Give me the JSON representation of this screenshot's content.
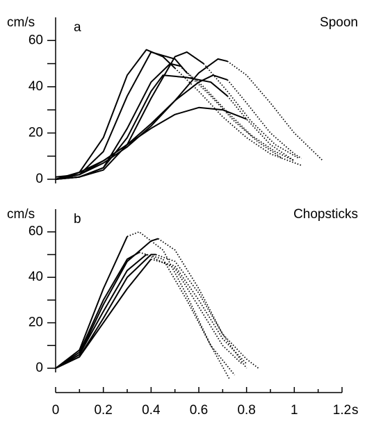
{
  "chart_data": [
    {
      "type": "line",
      "panel_label": "a",
      "title": "Spoon",
      "y_label": "cm/s",
      "xlim": [
        0,
        1.2
      ],
      "ylim": [
        0,
        70
      ],
      "yticks": [
        0,
        20,
        40,
        60
      ],
      "yminor": [
        10,
        30,
        50
      ],
      "series": [
        {
          "style": "solid",
          "x": [
            0,
            0.1,
            0.2,
            0.3,
            0.38,
            0.45,
            0.5
          ],
          "values": [
            0,
            3,
            18,
            45,
            56,
            53,
            48
          ]
        },
        {
          "style": "dotted",
          "x": [
            0.5,
            0.6,
            0.7,
            0.8,
            0.9,
            0.95
          ],
          "values": [
            48,
            38,
            27,
            18,
            11,
            9
          ]
        },
        {
          "style": "solid",
          "x": [
            0,
            0.1,
            0.2,
            0.3,
            0.4,
            0.5,
            0.55
          ],
          "values": [
            1,
            2,
            12,
            36,
            55,
            52,
            46
          ]
        },
        {
          "style": "dotted",
          "x": [
            0.55,
            0.65,
            0.75,
            0.85,
            0.95,
            1.03
          ],
          "values": [
            46,
            36,
            25,
            16,
            9,
            6
          ]
        },
        {
          "style": "solid",
          "x": [
            0,
            0.1,
            0.2,
            0.3,
            0.4,
            0.48,
            0.52
          ],
          "values": [
            0,
            1,
            5,
            22,
            42,
            50,
            49
          ]
        },
        {
          "style": "dotted",
          "x": [
            0.52,
            0.62,
            0.72,
            0.82,
            0.92,
            1.0
          ],
          "values": [
            49,
            40,
            29,
            19,
            12,
            8
          ]
        },
        {
          "style": "solid",
          "x": [
            0,
            0.1,
            0.2,
            0.3,
            0.4,
            0.5,
            0.55,
            0.62
          ],
          "values": [
            0,
            1,
            4,
            15,
            35,
            53,
            55,
            50
          ]
        },
        {
          "style": "dotted",
          "x": [
            0.62,
            0.72,
            0.82,
            0.92,
            1.02
          ],
          "values": [
            50,
            38,
            25,
            15,
            9
          ]
        },
        {
          "style": "solid",
          "x": [
            0,
            0.1,
            0.2,
            0.3,
            0.4,
            0.5,
            0.6,
            0.68,
            0.72
          ],
          "values": [
            0,
            2,
            8,
            15,
            24,
            34,
            46,
            52,
            51
          ]
        },
        {
          "style": "dotted",
          "x": [
            0.72,
            0.8,
            0.9,
            1.0,
            1.1,
            1.12
          ],
          "values": [
            51,
            45,
            33,
            20,
            10,
            8
          ]
        },
        {
          "style": "solid",
          "x": [
            0,
            0.1,
            0.2,
            0.3,
            0.4,
            0.5,
            0.6,
            0.66,
            0.72
          ],
          "values": [
            0,
            2,
            7,
            14,
            23,
            34,
            42,
            45,
            43
          ]
        },
        {
          "style": "dotted",
          "x": [
            0.72,
            0.8,
            0.9,
            1.0,
            1.03
          ],
          "values": [
            43,
            33,
            20,
            11,
            9
          ]
        },
        {
          "style": "solid",
          "x": [
            0,
            0.1,
            0.2,
            0.3,
            0.4,
            0.45,
            0.55,
            0.65,
            0.72
          ],
          "values": [
            0,
            1,
            5,
            18,
            38,
            45,
            44,
            42,
            36
          ]
        },
        {
          "style": "dotted",
          "x": [
            0.72,
            0.8,
            0.9,
            1.0
          ],
          "values": [
            36,
            26,
            15,
            8
          ]
        },
        {
          "style": "solid",
          "x": [
            0,
            0.1,
            0.2,
            0.3,
            0.4,
            0.5,
            0.6,
            0.7,
            0.8
          ],
          "values": [
            0,
            3,
            8,
            15,
            22,
            28,
            31,
            30,
            26
          ]
        }
      ]
    },
    {
      "type": "line",
      "panel_label": "b",
      "title": "Chopsticks",
      "y_label": "cm/s",
      "xlim": [
        0,
        1.2
      ],
      "ylim": [
        0,
        70
      ],
      "yticks": [
        0,
        20,
        40,
        60
      ],
      "yminor": [
        10,
        30,
        50
      ],
      "xticks": [
        0,
        0.2,
        0.4,
        0.6,
        0.8,
        1.0,
        1.2
      ],
      "xminor": [
        0.1,
        0.3,
        0.5,
        0.7,
        0.9,
        1.1
      ],
      "x_label": "s",
      "series": [
        {
          "style": "solid",
          "x": [
            0,
            0.1,
            0.2,
            0.3
          ],
          "values": [
            0,
            8,
            35,
            58
          ]
        },
        {
          "style": "dotted",
          "x": [
            0.3,
            0.35,
            0.45,
            0.55,
            0.65,
            0.73
          ],
          "values": [
            58,
            60,
            52,
            32,
            10,
            -5
          ]
        },
        {
          "style": "solid",
          "x": [
            0,
            0.1,
            0.2,
            0.3,
            0.4,
            0.43
          ],
          "values": [
            0,
            6,
            28,
            47,
            56,
            57
          ]
        },
        {
          "style": "dotted",
          "x": [
            0.43,
            0.5,
            0.6,
            0.7,
            0.8
          ],
          "values": [
            57,
            52,
            35,
            15,
            0
          ]
        },
        {
          "style": "solid",
          "x": [
            0,
            0.1,
            0.2,
            0.3,
            0.35
          ],
          "values": [
            0,
            7,
            30,
            48,
            51
          ]
        },
        {
          "style": "dotted",
          "x": [
            0.35,
            0.45,
            0.55,
            0.65,
            0.75
          ],
          "values": [
            51,
            48,
            30,
            10,
            -3
          ]
        },
        {
          "style": "solid",
          "x": [
            0,
            0.1,
            0.2,
            0.3,
            0.4,
            0.42
          ],
          "values": [
            0,
            5,
            22,
            40,
            50,
            50
          ]
        },
        {
          "style": "dotted",
          "x": [
            0.42,
            0.5,
            0.6,
            0.7,
            0.8,
            0.85
          ],
          "values": [
            50,
            47,
            33,
            15,
            4,
            0
          ]
        },
        {
          "style": "solid",
          "x": [
            0,
            0.1,
            0.2,
            0.3,
            0.38
          ],
          "values": [
            0,
            6,
            25,
            43,
            50
          ]
        },
        {
          "style": "dotted",
          "x": [
            0.38,
            0.5,
            0.6,
            0.7,
            0.78
          ],
          "values": [
            50,
            44,
            27,
            10,
            2
          ]
        },
        {
          "style": "solid",
          "x": [
            0,
            0.1,
            0.2,
            0.3,
            0.4
          ],
          "values": [
            0,
            5,
            20,
            35,
            48
          ]
        },
        {
          "style": "dotted",
          "x": [
            0.4,
            0.5,
            0.6,
            0.7,
            0.8
          ],
          "values": [
            48,
            45,
            30,
            13,
            2
          ]
        }
      ]
    }
  ]
}
